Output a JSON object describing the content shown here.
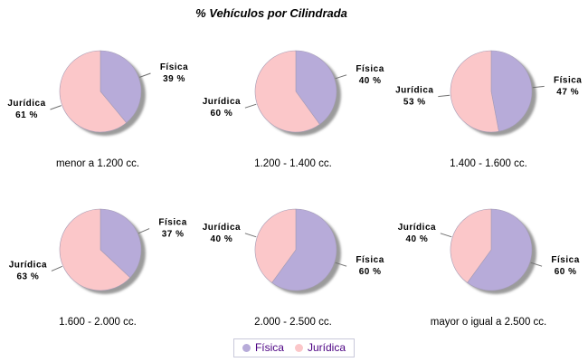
{
  "title": "% Vehículos por Cilindrada",
  "legend": {
    "items": [
      {
        "label": "Física",
        "color": "#b7abd9"
      },
      {
        "label": "Jurídica",
        "color": "#fbc7c9"
      }
    ]
  },
  "colors": {
    "fisica_slice": "#b7abd9",
    "juridica_slice": "#fbc7c9",
    "slice_outline": "#a39bb5",
    "shadow": "#9b9b9b",
    "leader_line": "#707070",
    "label_text": "#000000",
    "caption_text": "#000000",
    "legend_text": "#4b0082",
    "legend_border": "#c9c9da",
    "background": "#ffffff"
  },
  "chart_data": [
    {
      "type": "pie",
      "caption": "menor a 1.200 cc.",
      "slices": [
        {
          "label": "Física",
          "value": 39,
          "value_label": "39 %"
        },
        {
          "label": "Jurídica",
          "value": 61,
          "value_label": "61 %"
        }
      ]
    },
    {
      "type": "pie",
      "caption": "1.200 - 1.400 cc.",
      "slices": [
        {
          "label": "Física",
          "value": 40,
          "value_label": "40 %"
        },
        {
          "label": "Jurídica",
          "value": 60,
          "value_label": "60 %"
        }
      ]
    },
    {
      "type": "pie",
      "caption": "1.400 - 1.600 cc.",
      "slices": [
        {
          "label": "Física",
          "value": 47,
          "value_label": "47 %"
        },
        {
          "label": "Jurídica",
          "value": 53,
          "value_label": "53 %"
        }
      ]
    },
    {
      "type": "pie",
      "caption": "1.600 - 2.000 cc.",
      "slices": [
        {
          "label": "Física",
          "value": 37,
          "value_label": "37 %"
        },
        {
          "label": "Jurídica",
          "value": 63,
          "value_label": "63 %"
        }
      ]
    },
    {
      "type": "pie",
      "caption": "2.000 - 2.500 cc.",
      "slices": [
        {
          "label": "Física",
          "value": 60,
          "value_label": "60 %"
        },
        {
          "label": "Jurídica",
          "value": 40,
          "value_label": "40 %"
        }
      ]
    },
    {
      "type": "pie",
      "caption": "mayor o igual a 2.500 cc.",
      "slices": [
        {
          "label": "Física",
          "value": 60,
          "value_label": "60 %"
        },
        {
          "label": "Jurídica",
          "value": 40,
          "value_label": "40 %"
        }
      ]
    }
  ]
}
